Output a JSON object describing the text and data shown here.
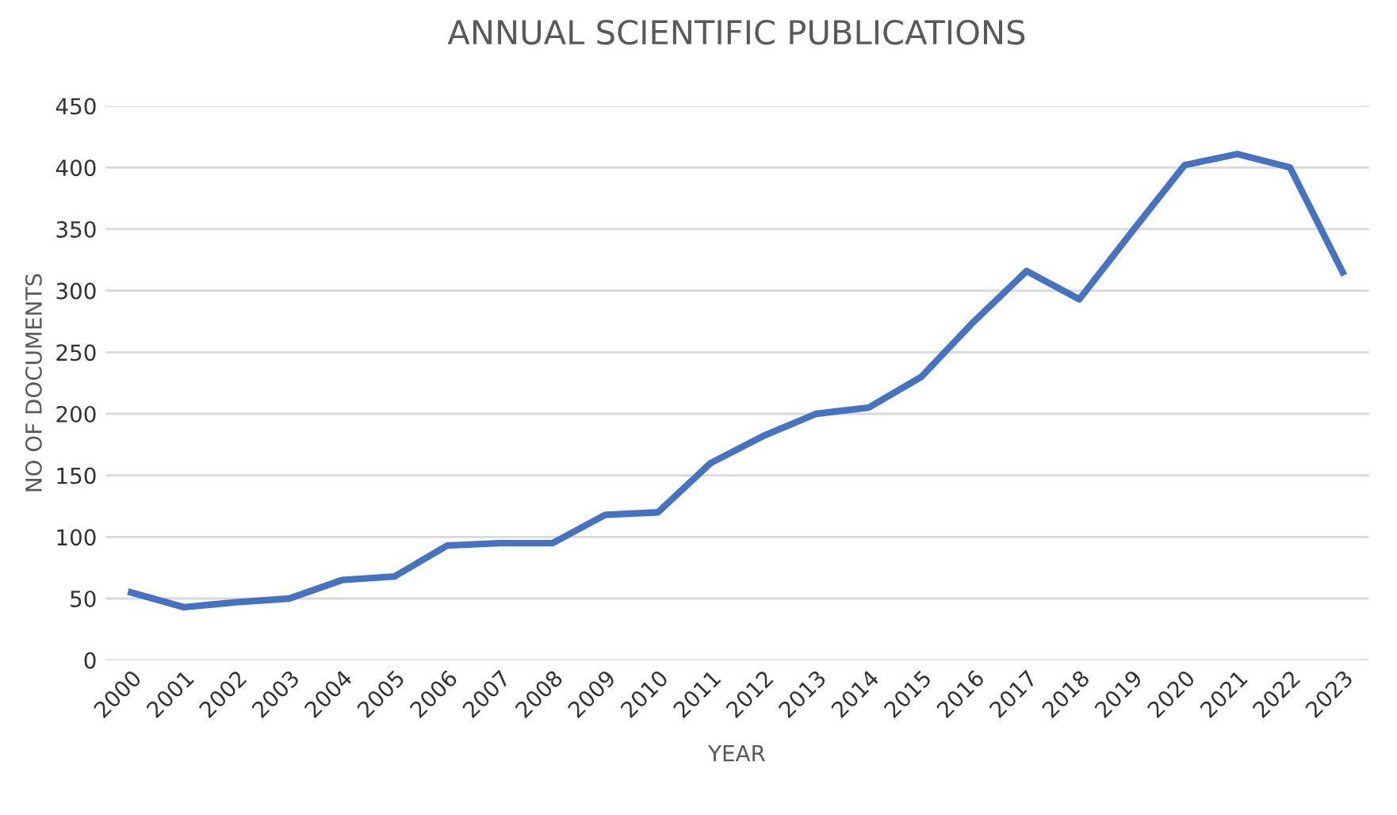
{
  "chart_data": {
    "type": "line",
    "title": "ANNUAL SCIENTIFIC PUBLICATIONS",
    "xlabel": "YEAR",
    "ylabel": "NO OF DOCUMENTS",
    "categories": [
      "2000",
      "2001",
      "2002",
      "2003",
      "2004",
      "2005",
      "2006",
      "2007",
      "2008",
      "2009",
      "2010",
      "2011",
      "2012",
      "2013",
      "2014",
      "2015",
      "2016",
      "2017",
      "2018",
      "2019",
      "2020",
      "2021",
      "2022",
      "2023"
    ],
    "series": [
      {
        "color": "#4472c4",
        "values": [
          55,
          43,
          47,
          50,
          65,
          68,
          93,
          95,
          95,
          118,
          120,
          160,
          182,
          200,
          205,
          230,
          275,
          316,
          293,
          348,
          402,
          411,
          400,
          315
        ]
      }
    ],
    "ylim": [
      0,
      450
    ],
    "yticks": [
      0,
      50,
      100,
      150,
      200,
      250,
      300,
      350,
      400,
      450
    ],
    "grid": "y",
    "marker": "none",
    "line_style": "solid"
  }
}
